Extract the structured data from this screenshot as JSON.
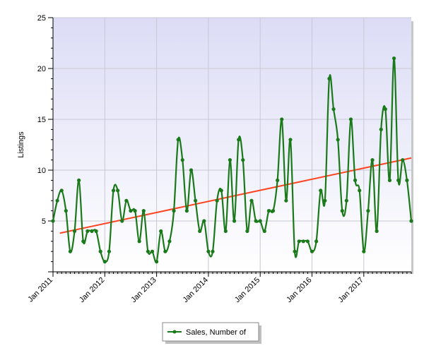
{
  "chart_data": {
    "type": "line",
    "title": "",
    "xlabel": "",
    "ylabel": "Listings",
    "ylim": [
      0,
      25
    ],
    "y_ticks": [
      5,
      10,
      15,
      20,
      25
    ],
    "x_ticks": [
      "Jan 2011",
      "Jan 2012",
      "Jan 2013",
      "Jan 2014",
      "Jan 2015",
      "Jan 2016",
      "Jan 2017"
    ],
    "grid": true,
    "legend_position": "bottom-center",
    "series": [
      {
        "name": "Sales, Number of",
        "color": "#1a7a1a",
        "x": [
          "2011-01",
          "2011-02",
          "2011-03",
          "2011-04",
          "2011-05",
          "2011-06",
          "2011-07",
          "2011-08",
          "2011-09",
          "2011-10",
          "2011-11",
          "2011-12",
          "2012-01",
          "2012-02",
          "2012-03",
          "2012-04",
          "2012-05",
          "2012-06",
          "2012-07",
          "2012-08",
          "2012-09",
          "2012-10",
          "2012-11",
          "2012-12",
          "2013-01",
          "2013-02",
          "2013-03",
          "2013-04",
          "2013-05",
          "2013-06",
          "2013-07",
          "2013-08",
          "2013-09",
          "2013-10",
          "2013-11",
          "2013-12",
          "2014-01",
          "2014-02",
          "2014-03",
          "2014-04",
          "2014-05",
          "2014-06",
          "2014-07",
          "2014-08",
          "2014-09",
          "2014-10",
          "2014-11",
          "2014-12",
          "2015-01",
          "2015-02",
          "2015-03",
          "2015-04",
          "2015-05",
          "2015-06",
          "2015-07",
          "2015-08",
          "2015-09",
          "2015-10",
          "2015-11",
          "2015-12",
          "2016-01",
          "2016-02",
          "2016-03",
          "2016-04",
          "2016-05",
          "2016-06",
          "2016-07",
          "2016-08",
          "2016-09",
          "2016-10",
          "2016-11",
          "2016-12",
          "2017-01",
          "2017-02",
          "2017-03",
          "2017-04",
          "2017-05",
          "2017-06",
          "2017-07",
          "2017-08",
          "2017-09",
          "2017-10",
          "2017-11",
          "2017-12"
        ],
        "values": [
          5,
          7,
          8,
          6,
          2,
          4,
          9,
          3,
          4,
          4,
          4,
          2,
          1,
          2,
          8,
          8,
          5,
          7,
          6,
          6,
          3,
          6,
          2,
          2,
          1,
          4,
          2,
          3,
          6,
          13,
          11,
          6,
          10,
          7,
          4,
          5,
          2,
          2,
          7,
          8,
          4,
          11,
          5,
          13,
          11,
          4,
          7,
          5,
          5,
          4,
          6,
          6,
          9,
          15,
          7,
          13,
          2,
          3,
          3,
          3,
          2,
          3,
          8,
          7,
          19,
          16,
          13,
          6,
          7,
          15,
          9,
          8,
          2,
          6,
          11,
          4,
          14,
          16,
          9,
          21,
          9,
          11,
          9,
          5
        ]
      }
    ],
    "trendline": {
      "color": "#ff4422",
      "start": 3.8,
      "end": 11.2
    }
  }
}
